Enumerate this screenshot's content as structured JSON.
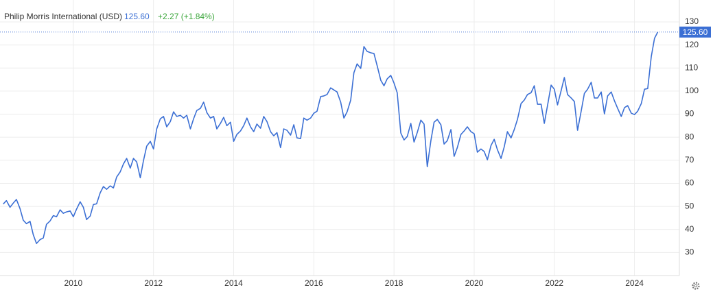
{
  "header": {
    "title": "Philip Morris International (USD)",
    "price": "125.60",
    "change": "+2.27 (+1.84%)"
  },
  "chart_data": {
    "type": "line",
    "color": "#3b6fd4",
    "grid": true,
    "xlim": [
      2008.17,
      2025.12
    ],
    "xticks": [
      2010,
      2012,
      2014,
      2016,
      2018,
      2020,
      2022,
      2024
    ],
    "ylim": [
      20,
      139.5
    ],
    "yticks": [
      30,
      40,
      50,
      60,
      70,
      80,
      90,
      100,
      110,
      120,
      130
    ],
    "x": [
      2008.25,
      2008.33,
      2008.42,
      2008.5,
      2008.58,
      2008.67,
      2008.75,
      2008.83,
      2008.92,
      2009.0,
      2009.08,
      2009.17,
      2009.25,
      2009.33,
      2009.42,
      2009.5,
      2009.58,
      2009.67,
      2009.75,
      2009.83,
      2009.92,
      2010.0,
      2010.08,
      2010.17,
      2010.25,
      2010.33,
      2010.42,
      2010.5,
      2010.58,
      2010.67,
      2010.75,
      2010.83,
      2010.92,
      2011.0,
      2011.08,
      2011.17,
      2011.25,
      2011.33,
      2011.42,
      2011.5,
      2011.58,
      2011.67,
      2011.75,
      2011.83,
      2011.92,
      2012.0,
      2012.08,
      2012.17,
      2012.25,
      2012.33,
      2012.42,
      2012.5,
      2012.58,
      2012.67,
      2012.75,
      2012.83,
      2012.92,
      2013.0,
      2013.08,
      2013.17,
      2013.25,
      2013.33,
      2013.42,
      2013.5,
      2013.58,
      2013.67,
      2013.75,
      2013.83,
      2013.92,
      2014.0,
      2014.08,
      2014.17,
      2014.25,
      2014.33,
      2014.42,
      2014.5,
      2014.58,
      2014.67,
      2014.75,
      2014.83,
      2014.92,
      2015.0,
      2015.08,
      2015.17,
      2015.25,
      2015.33,
      2015.42,
      2015.5,
      2015.58,
      2015.67,
      2015.75,
      2015.83,
      2015.92,
      2016.0,
      2016.08,
      2016.17,
      2016.25,
      2016.33,
      2016.42,
      2016.5,
      2016.58,
      2016.67,
      2016.75,
      2016.83,
      2016.92,
      2017.0,
      2017.08,
      2017.17,
      2017.25,
      2017.33,
      2017.42,
      2017.5,
      2017.58,
      2017.67,
      2017.75,
      2017.83,
      2017.92,
      2018.0,
      2018.08,
      2018.17,
      2018.25,
      2018.33,
      2018.42,
      2018.5,
      2018.58,
      2018.67,
      2018.75,
      2018.83,
      2018.92,
      2019.0,
      2019.08,
      2019.17,
      2019.25,
      2019.33,
      2019.42,
      2019.5,
      2019.58,
      2019.67,
      2019.75,
      2019.83,
      2019.92,
      2020.0,
      2020.08,
      2020.17,
      2020.25,
      2020.33,
      2020.42,
      2020.5,
      2020.58,
      2020.67,
      2020.75,
      2020.83,
      2020.92,
      2021.0,
      2021.08,
      2021.17,
      2021.25,
      2021.33,
      2021.42,
      2021.5,
      2021.58,
      2021.67,
      2021.75,
      2021.83,
      2021.92,
      2022.0,
      2022.08,
      2022.17,
      2022.25,
      2022.33,
      2022.42,
      2022.5,
      2022.58,
      2022.67,
      2022.75,
      2022.83,
      2022.92,
      2023.0,
      2023.08,
      2023.17,
      2023.25,
      2023.33,
      2023.42,
      2023.5,
      2023.58,
      2023.67,
      2023.75,
      2023.83,
      2023.92,
      2024.0,
      2024.08,
      2024.17,
      2024.25,
      2024.33,
      2024.42,
      2024.5,
      2024.58
    ],
    "series": [
      {
        "name": "Philip Morris International (USD)",
        "values": [
          51,
          52.5,
          49.6,
          51.4,
          53,
          49,
          44,
          42.5,
          43.5,
          37.7,
          33.9,
          35.6,
          36.3,
          42.2,
          43.7,
          46,
          45.5,
          48.5,
          47,
          47.6,
          48,
          45.5,
          48.8,
          52,
          49.6,
          44.3,
          45.8,
          50.8,
          51.1,
          55.9,
          58.6,
          57.4,
          58.9,
          58,
          62.7,
          65,
          68.4,
          70.8,
          66.6,
          70.8,
          69.3,
          62.4,
          69.9,
          76.1,
          78.2,
          74.9,
          83.6,
          88,
          89,
          84.5,
          86.8,
          91,
          89,
          89.5,
          88.3,
          89.5,
          83.6,
          88,
          91.6,
          92.5,
          95.2,
          90.7,
          88.3,
          89,
          83.6,
          86,
          88.6,
          85,
          86.5,
          78.2,
          81.2,
          82.7,
          85,
          88.3,
          84.5,
          82.4,
          85.7,
          83.9,
          89,
          86.8,
          82.4,
          80.6,
          82,
          75.5,
          83.6,
          83,
          80.9,
          85.4,
          79.7,
          79.4,
          88.3,
          87.4,
          88.3,
          90.4,
          91.3,
          97.6,
          97.9,
          98.5,
          101.4,
          100.5,
          99.6,
          95.2,
          88.3,
          91,
          96.1,
          108,
          111.8,
          109.8,
          119.3,
          117.2,
          116.6,
          116.3,
          111,
          104.7,
          102.3,
          105.3,
          106.8,
          103.5,
          99.3,
          81.8,
          78.8,
          80.3,
          86,
          77.9,
          82,
          87.4,
          85.7,
          67.2,
          78.5,
          86.5,
          87.7,
          85.4,
          77,
          78.5,
          83.3,
          71.7,
          75.5,
          81.2,
          82.7,
          84.5,
          82.4,
          81.5,
          73.5,
          74.9,
          73.8,
          70.2,
          76.4,
          79.1,
          74.6,
          70.8,
          75.8,
          82.4,
          79.7,
          83.3,
          87.7,
          94.6,
          96.1,
          98.5,
          99.3,
          102.3,
          94.3,
          94.3,
          86,
          93.7,
          102.6,
          100.8,
          94,
          100.2,
          105.9,
          98.5,
          97,
          95.5,
          83,
          91.3,
          99,
          100.8,
          103.8,
          97,
          97,
          99.6,
          90.1,
          97.9,
          99.6,
          95.8,
          92.5,
          89,
          92.8,
          93.7,
          90.4,
          89.8,
          91.3,
          94.6,
          100.8,
          101.1,
          115.1,
          122.9,
          125.6
        ]
      }
    ]
  }
}
